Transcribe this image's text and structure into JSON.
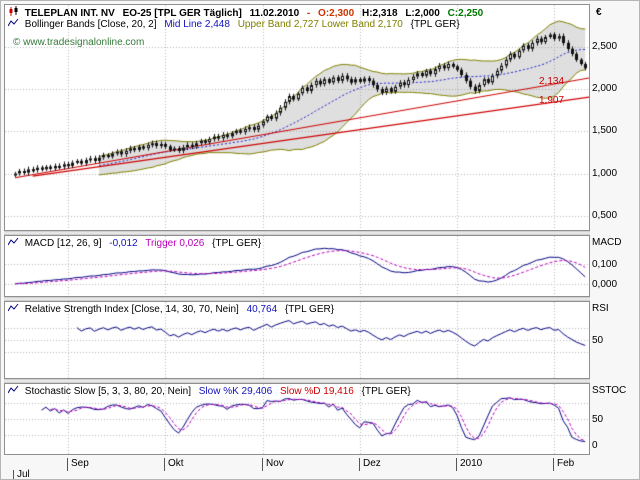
{
  "header": {
    "symbol": "TELEPLAN INT. NV",
    "contract": "EO-25 [TPL GER  Täglich]",
    "date": "11.02.2010",
    "dash": "-",
    "open": "O:2,300",
    "high": "H:2,318",
    "low": "L:2,000",
    "close": "C:2,250"
  },
  "watermark": "© www.tradesignalonline.com",
  "bollinger": {
    "name": "Bollinger Bands [Close, 20, 2]",
    "mid": "Mid Line 2,448",
    "bands": "Upper Band 2,727 Lower Band 2,170",
    "scope": "{TPL GER}"
  },
  "macd": {
    "name": "MACD [12, 26, 9]",
    "value": "-0,012",
    "trigger": "Trigger 0,026",
    "scope": "{TPL GER}",
    "axis_label": "MACD",
    "ticks": [
      "0,100",
      "0,000"
    ]
  },
  "rsi": {
    "name": "Relative Strength Index [Close, 14, 30, 70, Nein]",
    "value": "40,764",
    "scope": "{TPL GER}",
    "axis_label": "RSI",
    "ticks": [
      "50"
    ]
  },
  "stochastic": {
    "name": "Stochastic Slow [5, 3, 3, 80, 20, Nein]",
    "k": "Slow %K 29,406",
    "d": "Slow %D 19,416",
    "scope": "{TPL GER}",
    "axis_label": "SSTOC",
    "ticks": [
      "50",
      "0"
    ]
  },
  "price_axis": {
    "unit": "€",
    "ticks": [
      "2,500",
      "2,000",
      "1,500",
      "1,000",
      "0,500"
    ]
  },
  "trend_labels": [
    "2,134",
    "1,907"
  ],
  "x_axis": {
    "months": [
      "Sep",
      "Okt",
      "Nov",
      "Dez",
      "2010",
      "Feb"
    ],
    "start_label": "Jul"
  },
  "chart_data": {
    "type": "candlestick",
    "title": "TELEPLAN INT. NV EO-25 [TPL GER] daily with Bollinger Bands, MACD, RSI, Stochastic Slow",
    "ylim": [
      0.33,
      3.0
    ],
    "y_ticks": [
      2.5,
      2.0,
      1.5,
      1.0,
      0.5
    ],
    "closes": [
      1.0,
      1.03,
      1.01,
      1.05,
      1.04,
      1.07,
      1.05,
      1.08,
      1.06,
      1.09,
      1.08,
      1.11,
      1.09,
      1.13,
      1.15,
      1.12,
      1.16,
      1.18,
      1.15,
      1.19,
      1.22,
      1.2,
      1.24,
      1.26,
      1.23,
      1.27,
      1.3,
      1.28,
      1.32,
      1.3,
      1.34,
      1.36,
      1.33,
      1.35,
      1.32,
      1.28,
      1.3,
      1.27,
      1.31,
      1.34,
      1.32,
      1.36,
      1.39,
      1.37,
      1.41,
      1.44,
      1.42,
      1.46,
      1.44,
      1.48,
      1.51,
      1.49,
      1.53,
      1.55,
      1.52,
      1.57,
      1.62,
      1.68,
      1.65,
      1.72,
      1.78,
      1.85,
      1.92,
      1.88,
      1.95,
      2.02,
      1.98,
      2.05,
      2.1,
      2.06,
      2.12,
      2.08,
      2.14,
      2.1,
      2.16,
      2.12,
      2.08,
      2.12,
      2.09,
      2.13,
      2.1,
      2.05,
      2.0,
      1.96,
      2.01,
      1.97,
      2.03,
      2.08,
      2.05,
      2.11,
      2.15,
      2.19,
      2.16,
      2.22,
      2.18,
      2.24,
      2.28,
      2.25,
      2.3,
      2.27,
      2.23,
      2.17,
      2.1,
      2.03,
      1.98,
      2.05,
      2.12,
      2.08,
      2.16,
      2.22,
      2.28,
      2.35,
      2.42,
      2.38,
      2.46,
      2.52,
      2.48,
      2.55,
      2.6,
      2.56,
      2.62,
      2.65,
      2.6,
      2.63,
      2.55,
      2.48,
      2.42,
      2.35,
      2.3,
      2.25
    ],
    "last_ohlc": {
      "open": 2.3,
      "high": 2.318,
      "low": 2.0,
      "close": 2.25
    },
    "month_start_indices": [
      12,
      34,
      56,
      78,
      100,
      122
    ],
    "indicators": {
      "bollinger": {
        "period": 20,
        "mult": 2,
        "mid_last": 2.448,
        "upper_last": 2.727,
        "lower_last": 2.17
      },
      "macd": {
        "fast": 12,
        "slow": 26,
        "signal": 9,
        "last": -0.012,
        "trigger_last": 0.026,
        "grid": [
          0.1,
          0.0
        ]
      },
      "rsi": {
        "period": 14,
        "overbought": 70,
        "oversold": 30,
        "last": 40.764,
        "grid": [
          30,
          50,
          70
        ]
      },
      "stochastic": {
        "k": 5,
        "slowing": 3,
        "d": 3,
        "upper": 80,
        "lower": 20,
        "k_last": 29.406,
        "d_last": 19.416,
        "grid": [
          20,
          50,
          80
        ]
      }
    },
    "trendlines": [
      {
        "x1_index": 0,
        "price1": 0.95,
        "x2_index": 129,
        "price2": 2.134,
        "label": "2,134",
        "color": "#cc0000"
      },
      {
        "x1_index": 4,
        "price1": 0.97,
        "x2_index": 129,
        "price2": 1.907,
        "label": "1,907",
        "color": "#cc0000"
      }
    ],
    "colors": {
      "up": "#ffffff",
      "down": "#111111",
      "band": "#7f7f00",
      "band_fill": "rgba(140,140,140,0.28)",
      "mid": "#2222cc",
      "macd": "#000080",
      "trigger": "#bb00bb",
      "rsi": "#000080",
      "stoch_k": "#000080",
      "stoch_d": "#bb00bb",
      "trend": "#cc0000"
    }
  }
}
